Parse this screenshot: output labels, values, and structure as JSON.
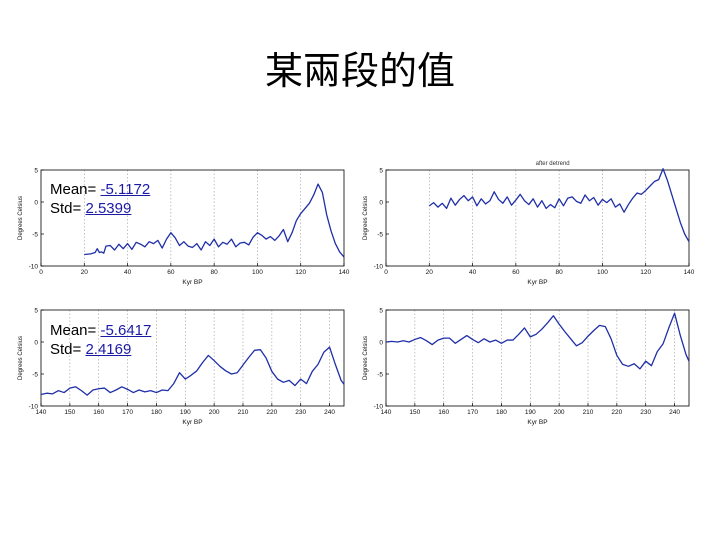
{
  "slide": {
    "title": "某兩段的值"
  },
  "annotations": [
    {
      "mean_label": "Mean=",
      "mean_value": "-5.1172",
      "std_label": "Std=",
      "std_value": "2.5399"
    },
    {
      "mean_label": "Mean=",
      "mean_value": "-5.6417",
      "std_label": "Std=",
      "std_value": "2.4169"
    }
  ],
  "colors": {
    "series": "#1f2fa8",
    "grid": "#9a9a9a",
    "axis": "#000000"
  },
  "chart_data": [
    {
      "type": "line",
      "title": "",
      "xlabel": "Kyr BP",
      "ylabel": "Degrees Celsius",
      "xlim": [
        0,
        140
      ],
      "ylim": [
        -10,
        5
      ],
      "xticks": [
        0,
        20,
        40,
        60,
        80,
        100,
        120,
        140
      ],
      "yticks": [
        5,
        0,
        -5,
        -10
      ],
      "grid": "vertical dotted",
      "series": [
        {
          "x": [
            20,
            23,
            25,
            26,
            27,
            28,
            29,
            30,
            32,
            34,
            36,
            38,
            40,
            42,
            44,
            46,
            48,
            50,
            52,
            54,
            56,
            58,
            60,
            62,
            64,
            66,
            68,
            70,
            72,
            74,
            76,
            78,
            80,
            82,
            84,
            86,
            88,
            90,
            92,
            94,
            96,
            98,
            100,
            102,
            104,
            106,
            108,
            110,
            112,
            114,
            116,
            118,
            120,
            122,
            124,
            126,
            128,
            130,
            132,
            134,
            136,
            138,
            140
          ],
          "y": [
            -8.2,
            -8.1,
            -7.9,
            -7.3,
            -7.9,
            -7.8,
            -8.0,
            -6.9,
            -6.8,
            -7.5,
            -6.6,
            -7.3,
            -6.5,
            -7.4,
            -6.3,
            -6.6,
            -7.0,
            -6.2,
            -6.5,
            -6.0,
            -7.2,
            -5.8,
            -4.8,
            -5.6,
            -6.8,
            -6.2,
            -6.9,
            -7.1,
            -6.5,
            -7.5,
            -6.2,
            -6.8,
            -5.8,
            -7.0,
            -6.3,
            -6.6,
            -5.8,
            -7.0,
            -6.4,
            -6.3,
            -6.7,
            -5.5,
            -4.8,
            -5.2,
            -5.8,
            -5.4,
            -6.0,
            -5.3,
            -4.3,
            -6.2,
            -4.8,
            -2.9,
            -1.8,
            -1.0,
            -0.2,
            1.1,
            2.8,
            1.5,
            -2.0,
            -4.5,
            -6.5,
            -7.8,
            -8.6
          ]
        }
      ]
    },
    {
      "type": "line",
      "title": "after detrend",
      "xlabel": "Kyr BP",
      "ylabel": "Degrees Celsius",
      "xlim": [
        0,
        140
      ],
      "ylim": [
        -10,
        5
      ],
      "xticks": [
        0,
        20,
        40,
        60,
        80,
        100,
        120,
        140
      ],
      "yticks": [
        5,
        0,
        -5,
        -10
      ],
      "grid": "vertical dotted",
      "series": [
        {
          "x": [
            20,
            22,
            24,
            26,
            28,
            30,
            32,
            34,
            36,
            38,
            40,
            42,
            44,
            46,
            48,
            50,
            52,
            54,
            56,
            58,
            60,
            62,
            64,
            66,
            68,
            70,
            72,
            74,
            76,
            78,
            80,
            82,
            84,
            86,
            88,
            90,
            92,
            94,
            96,
            98,
            100,
            102,
            104,
            106,
            108,
            110,
            112,
            114,
            116,
            118,
            120,
            122,
            124,
            126,
            128,
            130,
            132,
            134,
            136,
            138,
            140
          ],
          "y": [
            -0.6,
            -0.1,
            -0.8,
            -0.2,
            -1.0,
            0.6,
            -0.5,
            0.4,
            1.0,
            0.2,
            0.8,
            -0.6,
            0.5,
            -0.3,
            0.2,
            1.6,
            0.4,
            -0.2,
            0.8,
            -0.5,
            0.3,
            1.2,
            0.2,
            -0.4,
            0.5,
            -0.8,
            0.2,
            -1.0,
            -0.4,
            -0.9,
            0.5,
            -0.6,
            0.6,
            0.8,
            0.1,
            -0.2,
            1.1,
            0.2,
            0.7,
            -0.5,
            0.4,
            -0.1,
            0.5,
            -0.8,
            -0.3,
            -1.6,
            -0.4,
            0.6,
            1.4,
            1.2,
            1.8,
            2.5,
            3.2,
            3.5,
            5.2,
            3.4,
            1.2,
            -1.0,
            -3.2,
            -5.0,
            -6.2
          ]
        }
      ]
    },
    {
      "type": "line",
      "title": "",
      "xlabel": "Kyr BP",
      "ylabel": "Degrees Celsius",
      "xlim": [
        140,
        245
      ],
      "ylim": [
        -10,
        5
      ],
      "xticks": [
        140,
        150,
        160,
        170,
        180,
        190,
        200,
        210,
        220,
        230,
        240
      ],
      "yticks": [
        5,
        0,
        -5,
        -10
      ],
      "grid": "vertical dotted",
      "series": [
        {
          "x": [
            140,
            142,
            144,
            146,
            148,
            150,
            152,
            154,
            156,
            158,
            160,
            162,
            164,
            166,
            168,
            170,
            172,
            174,
            176,
            178,
            180,
            182,
            184,
            186,
            188,
            190,
            192,
            194,
            196,
            198,
            200,
            202,
            204,
            206,
            208,
            210,
            212,
            214,
            216,
            218,
            220,
            222,
            224,
            226,
            228,
            230,
            232,
            234,
            236,
            238,
            240,
            242,
            244,
            245
          ],
          "y": [
            -8.2,
            -8.0,
            -8.1,
            -7.6,
            -7.9,
            -7.2,
            -7.0,
            -7.6,
            -8.3,
            -7.5,
            -7.3,
            -7.2,
            -7.9,
            -7.5,
            -7.0,
            -7.4,
            -7.9,
            -7.5,
            -7.8,
            -7.6,
            -7.9,
            -7.5,
            -7.6,
            -6.5,
            -4.8,
            -5.8,
            -5.2,
            -4.5,
            -3.2,
            -2.1,
            -2.9,
            -3.8,
            -4.5,
            -5.0,
            -4.8,
            -3.6,
            -2.4,
            -1.3,
            -1.2,
            -2.5,
            -4.6,
            -5.8,
            -6.3,
            -6.0,
            -6.8,
            -5.8,
            -6.5,
            -4.6,
            -3.5,
            -1.6,
            -0.8,
            -3.5,
            -6.0,
            -6.6
          ]
        }
      ]
    },
    {
      "type": "line",
      "title": "",
      "xlabel": "Kyr BP",
      "ylabel": "Degrees Celsius",
      "xlim": [
        140,
        245
      ],
      "ylim": [
        -10,
        5
      ],
      "xticks": [
        140,
        150,
        160,
        170,
        180,
        190,
        200,
        210,
        220,
        230,
        240
      ],
      "yticks": [
        5,
        0,
        -5,
        -10
      ],
      "grid": "vertical dotted",
      "series": [
        {
          "x": [
            140,
            142,
            144,
            146,
            148,
            150,
            152,
            154,
            156,
            158,
            160,
            162,
            164,
            166,
            168,
            170,
            172,
            174,
            176,
            178,
            180,
            182,
            184,
            186,
            188,
            190,
            192,
            194,
            196,
            198,
            200,
            202,
            204,
            206,
            208,
            210,
            212,
            214,
            216,
            218,
            220,
            222,
            224,
            226,
            228,
            230,
            232,
            234,
            236,
            238,
            240,
            242,
            244,
            245
          ],
          "y": [
            0.0,
            0.1,
            0.0,
            0.2,
            0.0,
            0.4,
            0.7,
            0.2,
            -0.4,
            0.3,
            0.6,
            0.6,
            -0.2,
            0.4,
            1.0,
            0.4,
            -0.1,
            0.5,
            0.0,
            0.3,
            -0.2,
            0.3,
            0.3,
            1.2,
            2.2,
            0.8,
            1.2,
            2.0,
            3.0,
            4.1,
            2.8,
            1.6,
            0.5,
            -0.6,
            -0.1,
            0.9,
            1.8,
            2.6,
            2.4,
            0.5,
            -2.1,
            -3.5,
            -3.8,
            -3.4,
            -4.2,
            -3.0,
            -3.7,
            -1.5,
            -0.3,
            2.2,
            4.5,
            1.0,
            -2.0,
            -3.0
          ]
        }
      ]
    }
  ]
}
